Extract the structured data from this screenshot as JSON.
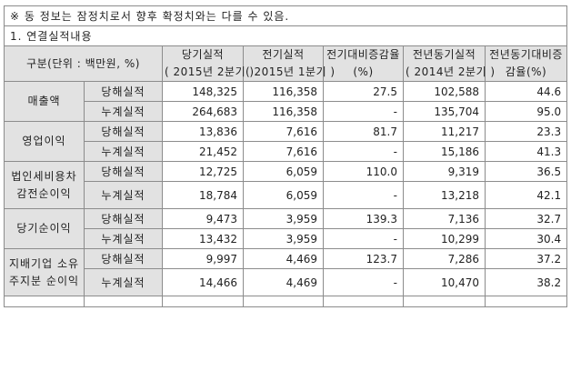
{
  "notice": "※ 동 정보는 잠정치로서 향후 확정치와는 다를 수 있음.",
  "section_title": "1. 연결실적내용",
  "header": {
    "category": "구분(단위 : 백만원, %)",
    "current_line1": "당기실적",
    "current_line2": "( 2015년 2분기 )",
    "previous_line1": "전기실적",
    "previous_line2": "( 2015년 1분기 )",
    "qoq_change": "전기대비증감율(%)",
    "yoy_line1": "전년동기실적",
    "yoy_line2": "( 2014년 2분기 )",
    "yoy_change": "전년동기대비증감율(%)"
  },
  "groups": [
    {
      "name": "매출액",
      "rows": [
        {
          "type": "당해실적",
          "current": "148,325",
          "previous": "116,358",
          "qoq": "27.5",
          "yoy_value": "102,588",
          "yoy": "44.6"
        },
        {
          "type": "누계실적",
          "current": "264,683",
          "previous": "116,358",
          "qoq": "-",
          "yoy_value": "135,704",
          "yoy": "95.0"
        }
      ]
    },
    {
      "name": "영업이익",
      "rows": [
        {
          "type": "당해실적",
          "current": "13,836",
          "previous": "7,616",
          "qoq": "81.7",
          "yoy_value": "11,217",
          "yoy": "23.3"
        },
        {
          "type": "누계실적",
          "current": "21,452",
          "previous": "7,616",
          "qoq": "-",
          "yoy_value": "15,186",
          "yoy": "41.3"
        }
      ]
    },
    {
      "name": "법인세비용차감전순이익",
      "rows": [
        {
          "type": "당해실적",
          "current": "12,725",
          "previous": "6,059",
          "qoq": "110.0",
          "yoy_value": "9,319",
          "yoy": "36.5"
        },
        {
          "type": "누계실적",
          "current": "18,784",
          "previous": "6,059",
          "qoq": "-",
          "yoy_value": "13,218",
          "yoy": "42.1"
        }
      ]
    },
    {
      "name": "당기순이익",
      "rows": [
        {
          "type": "당해실적",
          "current": "9,473",
          "previous": "3,959",
          "qoq": "139.3",
          "yoy_value": "7,136",
          "yoy": "32.7"
        },
        {
          "type": "누계실적",
          "current": "13,432",
          "previous": "3,959",
          "qoq": "-",
          "yoy_value": "10,299",
          "yoy": "30.4"
        }
      ]
    },
    {
      "name": "지배기업 소유주지분 순이익",
      "rows": [
        {
          "type": "당해실적",
          "current": "9,997",
          "previous": "4,469",
          "qoq": "123.7",
          "yoy_value": "7,286",
          "yoy": "37.2"
        },
        {
          "type": "누계실적",
          "current": "14,466",
          "previous": "4,469",
          "qoq": "-",
          "yoy_value": "10,470",
          "yoy": "38.2"
        }
      ]
    }
  ]
}
